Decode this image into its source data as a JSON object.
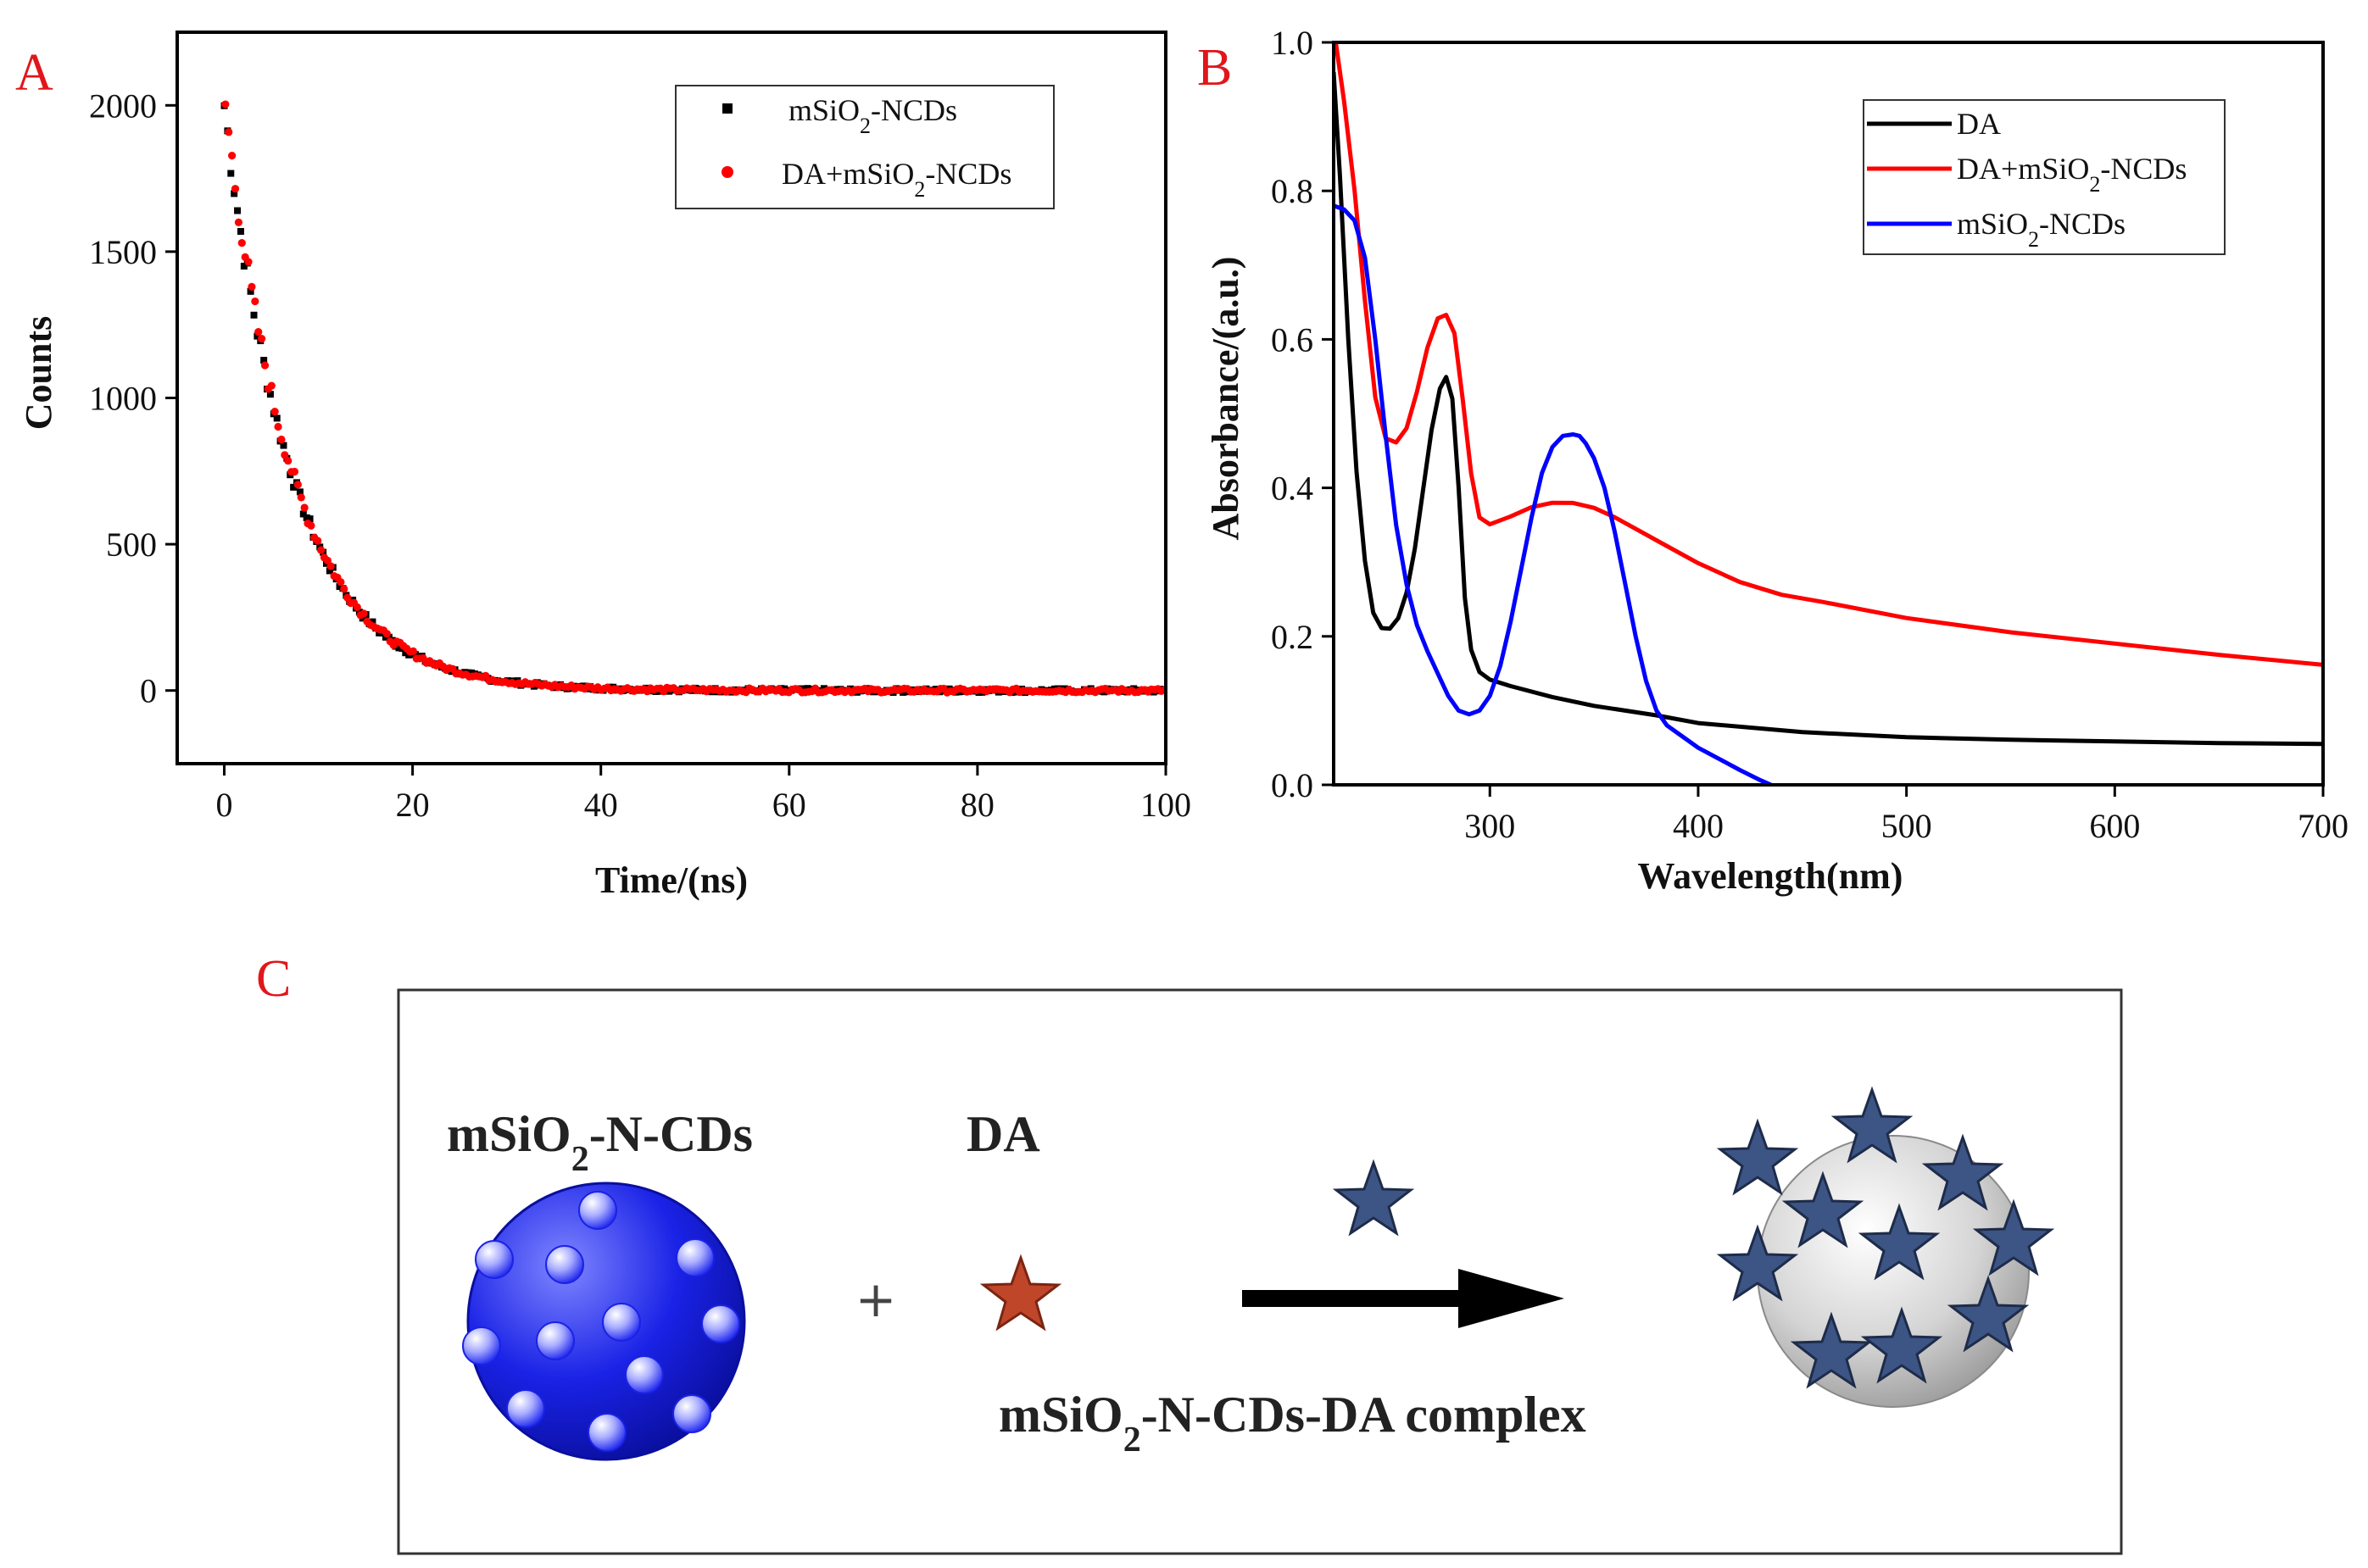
{
  "panel_labels": {
    "a": "A",
    "b": "B",
    "c": "C"
  },
  "chart_data": [
    {
      "id": "A",
      "type": "scatter",
      "xlabel": "Time/(ns)",
      "ylabel": "Counts",
      "xlim": [
        -5,
        100
      ],
      "ylim": [
        -250,
        2250
      ],
      "xticks": [
        0,
        20,
        40,
        60,
        80,
        100
      ],
      "yticks": [
        0,
        500,
        1000,
        1500,
        2000
      ],
      "xtick_labels": [
        "0",
        "20",
        "40",
        "60",
        "80",
        "100"
      ],
      "ytick_labels": [
        "0",
        "500",
        "1000",
        "1500",
        "2000"
      ],
      "legend_position": "top-right",
      "decay": {
        "amplitude": 2000,
        "tau_ns": 7.2,
        "t_max": 100,
        "step": 0.35
      },
      "series": [
        {
          "name": "mSiO2-NCDs",
          "legend_main": "mSiO",
          "legend_sub": "2",
          "legend_tail": "-NCDs",
          "color": "#000000",
          "marker": "square"
        },
        {
          "name": "DA+mSiO2-NCDs",
          "legend_main": "DA+mSiO",
          "legend_sub": "2",
          "legend_tail": "-NCDs",
          "color": "#ff0000",
          "marker": "circle"
        }
      ]
    },
    {
      "id": "B",
      "type": "line",
      "xlabel": "Wavelength(nm)",
      "ylabel": "Absorbance/(a.u.)",
      "xlim": [
        225,
        700
      ],
      "ylim": [
        0,
        1.0
      ],
      "xticks": [
        300,
        400,
        500,
        600,
        700
      ],
      "yticks": [
        0.0,
        0.2,
        0.4,
        0.6,
        0.8,
        1.0
      ],
      "xtick_labels": [
        "300",
        "400",
        "500",
        "600",
        "700"
      ],
      "ytick_labels": [
        "0.0",
        "0.2",
        "0.4",
        "0.6",
        "0.8",
        "1.0"
      ],
      "legend_position": "top-right",
      "series": [
        {
          "name": "DA",
          "legend_main": "DA",
          "legend_sub": "",
          "legend_tail": "",
          "color": "#000000",
          "x": [
            225,
            228,
            232,
            236,
            240,
            244,
            248,
            252,
            256,
            260,
            264,
            268,
            272,
            276,
            279,
            282,
            285,
            288,
            291,
            295,
            300,
            310,
            330,
            350,
            380,
            400,
            450,
            500,
            550,
            600,
            650,
            700
          ],
          "y": [
            0.96,
            0.82,
            0.6,
            0.42,
            0.3,
            0.23,
            0.21,
            0.21,
            0.225,
            0.26,
            0.32,
            0.4,
            0.48,
            0.535,
            0.55,
            0.52,
            0.4,
            0.25,
            0.18,
            0.15,
            0.14,
            0.132,
            0.118,
            0.107,
            0.095,
            0.085,
            0.073,
            0.066,
            0.062,
            0.059,
            0.056,
            0.054
          ]
        },
        {
          "name": "DA+mSiO2-NCDs",
          "legend_main": "DA+mSiO",
          "legend_sub": "2",
          "legend_tail": "-NCDs",
          "color": "#ff0000",
          "x": [
            226,
            230,
            235,
            240,
            245,
            250,
            255,
            260,
            265,
            270,
            275,
            279,
            283,
            287,
            291,
            295,
            300,
            310,
            320,
            330,
            340,
            350,
            360,
            380,
            400,
            420,
            440,
            460,
            500,
            550,
            600,
            650,
            700
          ],
          "y": [
            1.0,
            0.92,
            0.8,
            0.65,
            0.52,
            0.465,
            0.46,
            0.48,
            0.53,
            0.59,
            0.63,
            0.635,
            0.61,
            0.52,
            0.42,
            0.36,
            0.35,
            0.36,
            0.372,
            0.378,
            0.378,
            0.372,
            0.36,
            0.33,
            0.3,
            0.275,
            0.258,
            0.248,
            0.226,
            0.206,
            0.19,
            0.174,
            0.16
          ]
        },
        {
          "name": "mSiO2-NCDs",
          "legend_main": "mSiO",
          "legend_sub": "2",
          "legend_tail": "-NCDs",
          "color": "#0000ff",
          "x": [
            225,
            230,
            235,
            240,
            245,
            250,
            255,
            260,
            265,
            270,
            275,
            280,
            285,
            290,
            295,
            300,
            305,
            310,
            315,
            320,
            325,
            330,
            335,
            340,
            343,
            346,
            350,
            355,
            360,
            365,
            370,
            375,
            380,
            385,
            390,
            395,
            400,
            410,
            420,
            430,
            435
          ],
          "y": [
            0.78,
            0.775,
            0.76,
            0.71,
            0.6,
            0.47,
            0.35,
            0.27,
            0.215,
            0.18,
            0.15,
            0.12,
            0.1,
            0.095,
            0.1,
            0.12,
            0.16,
            0.22,
            0.29,
            0.36,
            0.42,
            0.455,
            0.47,
            0.472,
            0.47,
            0.46,
            0.44,
            0.4,
            0.34,
            0.27,
            0.2,
            0.14,
            0.1,
            0.08,
            0.07,
            0.06,
            0.05,
            0.035,
            0.02,
            0.006,
            0.0
          ]
        }
      ]
    }
  ],
  "schematic": {
    "reactant_label_main": "mSiO",
    "reactant_label_sub": "2",
    "reactant_label_tail": "-N-CDs",
    "da_label": "DA",
    "plus": "+",
    "product_label_main": "mSiO",
    "product_label_sub": "2",
    "product_label_tail": "-N-CDs-DA complex",
    "colors": {
      "sphere": "#1a22e6",
      "da_star": "#c0462a",
      "bound_star": "#3d5585",
      "product_sphere": "#cfcfcf"
    }
  }
}
